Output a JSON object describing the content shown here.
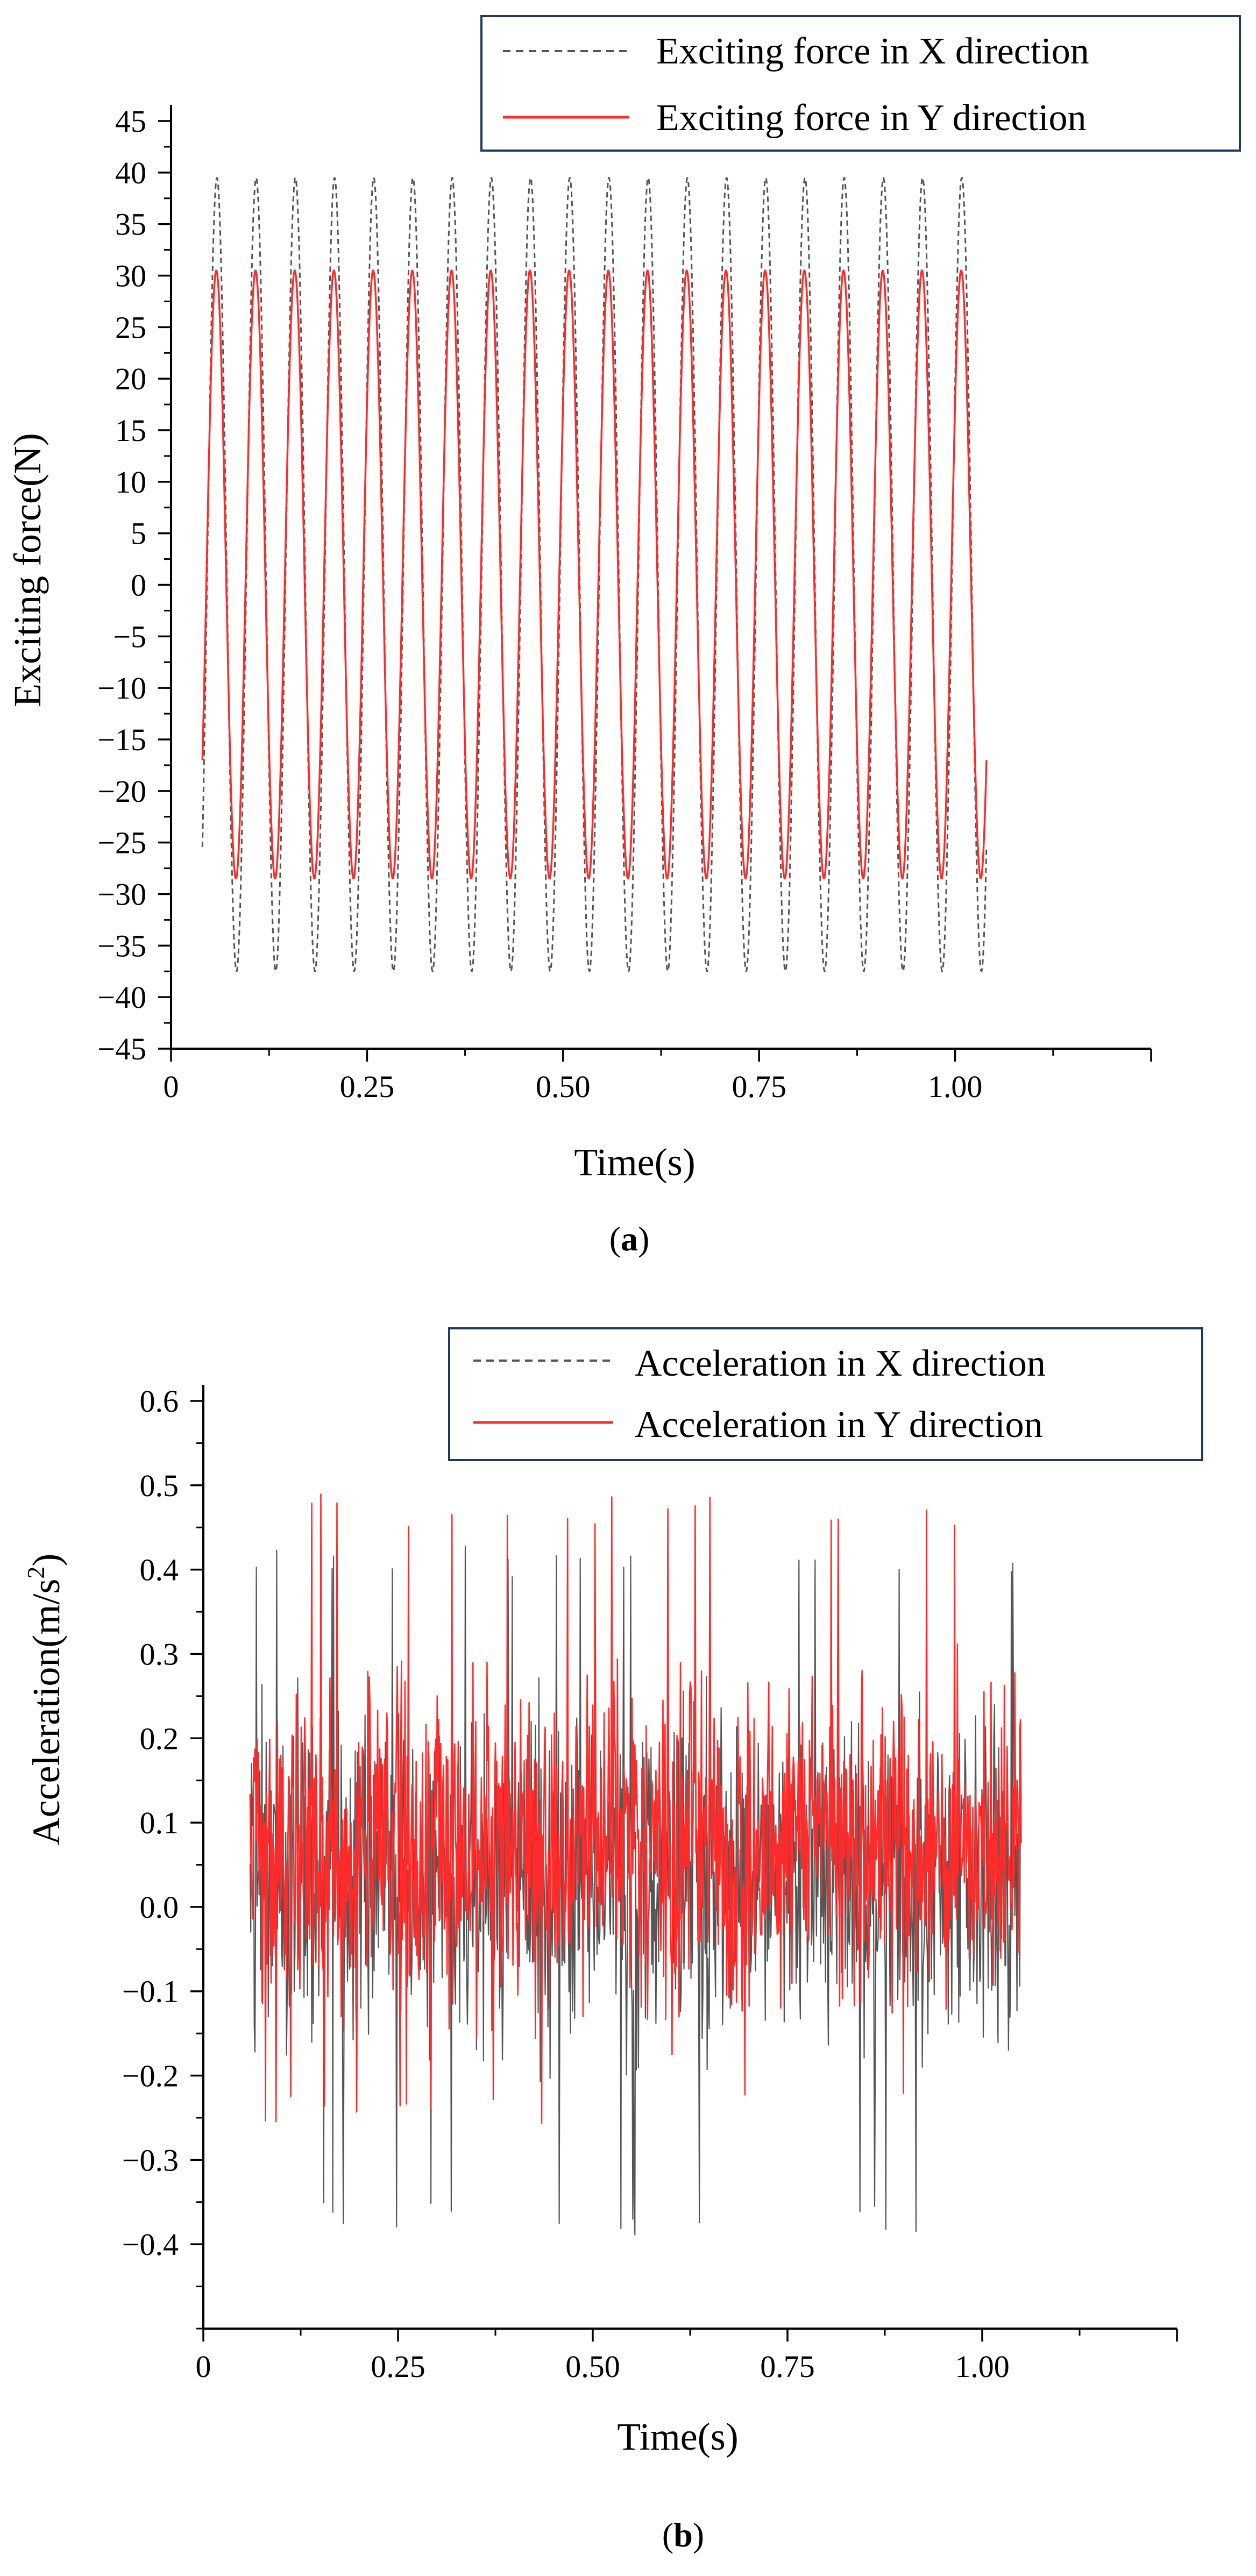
{
  "colors": {
    "x_series": "#555555",
    "y_series": "#ff2a2a",
    "axis": "#000000",
    "legend_border": "#1f3864"
  },
  "chart_data": [
    {
      "type": "line",
      "panel_label": "a",
      "title": "",
      "xlabel": "Time(s)",
      "ylabel": "Exciting force(N)",
      "xlim": [
        0,
        1.25
      ],
      "ylim": [
        -45,
        45
      ],
      "y_minor_step": 2.5,
      "x_tick_values": [
        0,
        0.25,
        0.5,
        0.75,
        1.0
      ],
      "x_tick_labels": [
        "0",
        "0.25",
        "0.50",
        "0.75",
        "1.00"
      ],
      "y_tick_values": [
        45,
        40,
        35,
        30,
        25,
        20,
        15,
        10,
        5,
        0,
        -5,
        -10,
        -15,
        -20,
        -25,
        -30,
        -35,
        -40,
        -45
      ],
      "y_tick_labels": [
        "45",
        "40",
        "35",
        "30",
        "25",
        "20",
        "15",
        "10",
        "5",
        "0",
        "−5",
        "−10",
        "−15",
        "−20",
        "−25",
        "−30",
        "−35",
        "−40",
        "−45"
      ],
      "legend_position": "top-right",
      "series": [
        {
          "name": "Exciting force in X direction",
          "style": "dashed",
          "color": "#555555",
          "x_start": 0.04,
          "x_end": 1.04,
          "frequency_hz": 20,
          "amplitude_n": 38.5,
          "offset_n": 1.0,
          "phase_rad": 0.5
        },
        {
          "name": "Exciting force in Y direction",
          "style": "solid",
          "color": "#ff2a2a",
          "x_start": 0.04,
          "x_end": 1.04,
          "frequency_hz": 20,
          "amplitude_n": 29.5,
          "offset_n": 1.0,
          "phase_rad": 0.6
        }
      ]
    },
    {
      "type": "line",
      "panel_label": "b",
      "title": "",
      "xlabel": "Time(s)",
      "ylabel_main": "Acceleration(m/s",
      "ylabel_sup": "2",
      "ylabel_end": ")",
      "xlim": [
        0,
        1.25
      ],
      "ylim": [
        -0.5,
        0.6
      ],
      "y_minor_step": 0.05,
      "x_tick_values": [
        0,
        0.25,
        0.5,
        0.75,
        1.0
      ],
      "x_tick_labels": [
        "0",
        "0.25",
        "0.50",
        "0.75",
        "1.00"
      ],
      "y_tick_values": [
        0.6,
        0.5,
        0.4,
        0.3,
        0.2,
        0.1,
        0.0,
        -0.1,
        -0.2,
        -0.3,
        -0.4
      ],
      "y_tick_labels": [
        "0.6",
        "0.5",
        "0.4",
        "0.3",
        "0.2",
        "0.1",
        "0.0",
        "−0.1",
        "−0.2",
        "−0.3",
        "−0.4"
      ],
      "legend_position": "top-right",
      "series": [
        {
          "name": "Acceleration in X direction",
          "style": "dashed",
          "color": "#555555",
          "x_start": 0.06,
          "x_end": 1.05,
          "mean": 0.03,
          "typical_low": -0.22,
          "typical_high": 0.28,
          "extreme_min": -0.39,
          "extreme_max": 0.43
        },
        {
          "name": "Acceleration in Y direction",
          "style": "solid",
          "color": "#ff2a2a",
          "x_start": 0.06,
          "x_end": 1.05,
          "mean": 0.07,
          "typical_low": -0.15,
          "typical_high": 0.32,
          "extreme_min": -0.26,
          "extreme_max": 0.49
        }
      ]
    }
  ]
}
